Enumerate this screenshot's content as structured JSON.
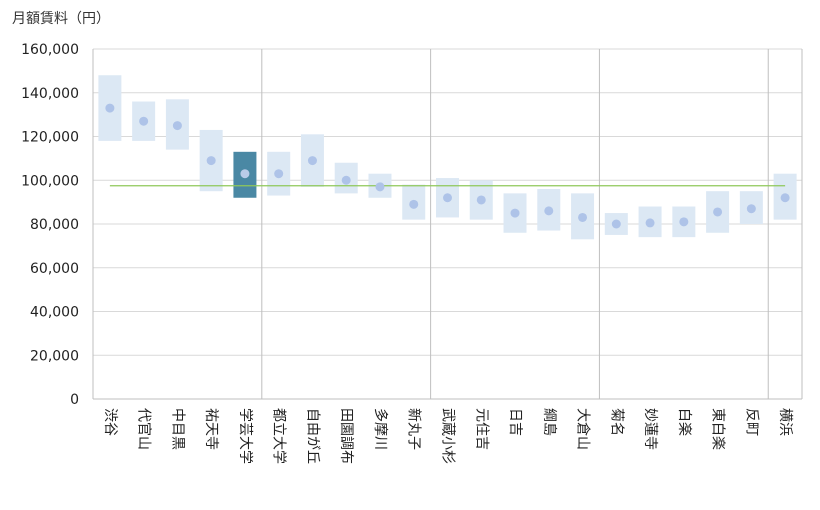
{
  "chart_data": {
    "type": "range-bar",
    "title": "",
    "ylabel": "月額賃料（円）",
    "xlabel": "",
    "ylim": [
      0,
      160000
    ],
    "y_ticks": [
      0,
      20000,
      40000,
      60000,
      80000,
      100000,
      120000,
      140000,
      160000
    ],
    "y_tick_labels": [
      "0",
      "20,000",
      "40,000",
      "60,000",
      "80,000",
      "100,000",
      "120,000",
      "140,000",
      "160,000"
    ],
    "categories": [
      "渋谷",
      "代官山",
      "中目黒",
      "祐天寺",
      "学芸大学",
      "都立大学",
      "自由が丘",
      "田園調布",
      "多摩川",
      "新丸子",
      "武蔵小杉",
      "元住吉",
      "日吉",
      "綱島",
      "大倉山",
      "菊名",
      "妙蓮寺",
      "白楽",
      "東白楽",
      "反町",
      "横浜"
    ],
    "low": [
      118000,
      118000,
      114000,
      95000,
      92000,
      93000,
      97000,
      94000,
      92000,
      82000,
      83000,
      82000,
      76000,
      77000,
      73000,
      75000,
      74000,
      74000,
      76000,
      80000,
      82000
    ],
    "high": [
      148000,
      136000,
      137000,
      123000,
      113000,
      113000,
      121000,
      108000,
      103000,
      98000,
      101000,
      100000,
      94000,
      96000,
      94000,
      85000,
      88000,
      88000,
      95000,
      95000,
      103000
    ],
    "avg": [
      133000,
      127000,
      125000,
      109000,
      103000,
      103000,
      109000,
      100000,
      97000,
      89000,
      92000,
      91000,
      85000,
      86000,
      83000,
      80000,
      80500,
      81000,
      85500,
      87000,
      92000
    ],
    "highlight_index": 4,
    "reference_value": 97500,
    "group_dividers_after": [
      4,
      9,
      14,
      19
    ],
    "colors": {
      "range": "#dce8f4",
      "range_highlight": "#4a88a4",
      "dot": "#aec3e8",
      "dot_highlight": "#b9cbe9",
      "reference": "#8fc85a",
      "grid": "#d9d9d9",
      "divider": "#bfbfbf"
    }
  }
}
